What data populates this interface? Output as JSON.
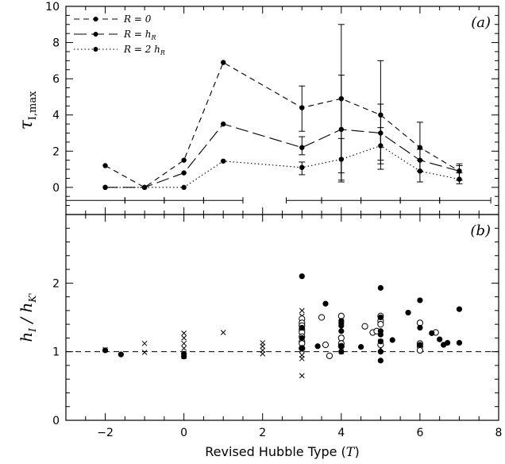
{
  "chart_data": [
    {
      "type": "line",
      "panel_label": "(a)",
      "ylabel": "τ_I,max",
      "xlim": [
        -3,
        8
      ],
      "ylim": [
        -1.5,
        10
      ],
      "x_ticks": [
        -2,
        0,
        2,
        4,
        6,
        8
      ],
      "y_ticks": [
        0,
        2,
        4,
        6,
        8,
        10
      ],
      "legend": {
        "placement": "top-left",
        "entries": [
          "R = 0",
          "R = h_R",
          "R = 2 h_R"
        ]
      },
      "series": [
        {
          "name": "R = 0",
          "style": "dashed",
          "points": [
            {
              "x": -2,
              "y": 1.2
            },
            {
              "x": -1,
              "y": 0.0
            },
            {
              "x": 0,
              "y": 1.5
            },
            {
              "x": 1,
              "y": 6.9
            },
            {
              "x": 3,
              "y": 4.4,
              "err": [
                3.1,
                5.6
              ]
            },
            {
              "x": 4,
              "y": 4.9,
              "err": [
                0.8,
                9.0
              ]
            },
            {
              "x": 5,
              "y": 4.0,
              "err": [
                1.0,
                7.0
              ]
            },
            {
              "x": 6,
              "y": 2.2,
              "err": [
                0.9,
                3.6
              ]
            },
            {
              "x": 7,
              "y": 0.9,
              "err": [
                0.4,
                1.3
              ]
            }
          ]
        },
        {
          "name": "R = h_R",
          "style": "long-dashed",
          "points": [
            {
              "x": -2,
              "y": 0.0
            },
            {
              "x": -1,
              "y": 0.0
            },
            {
              "x": 0,
              "y": 0.8
            },
            {
              "x": 1,
              "y": 3.5
            },
            {
              "x": 3,
              "y": 2.2,
              "err": [
                1.8,
                2.8
              ]
            },
            {
              "x": 4,
              "y": 3.2,
              "err": [
                0.4,
                6.2
              ]
            },
            {
              "x": 5,
              "y": 3.0,
              "err": [
                1.5,
                4.6
              ]
            },
            {
              "x": 6,
              "y": 1.5,
              "err": [
                0.9,
                2.1
              ]
            },
            {
              "x": 7,
              "y": 0.9,
              "err": [
                0.4,
                1.2
              ]
            }
          ]
        },
        {
          "name": "R = 2 h_R",
          "style": "dotted",
          "points": [
            {
              "x": -2,
              "y": 0.0
            },
            {
              "x": -1,
              "y": 0.0
            },
            {
              "x": 0,
              "y": 0.0
            },
            {
              "x": 1,
              "y": 1.45
            },
            {
              "x": 3,
              "y": 1.1,
              "err": [
                0.7,
                1.4
              ]
            },
            {
              "x": 4,
              "y": 1.55,
              "err": [
                0.3,
                2.7
              ]
            },
            {
              "x": 5,
              "y": 2.3,
              "err": [
                1.3,
                3.3
              ]
            },
            {
              "x": 6,
              "y": 0.9,
              "err": [
                0.3,
                1.5
              ]
            },
            {
              "x": 7,
              "y": 0.45,
              "err": [
                0.2,
                0.8
              ]
            }
          ]
        }
      ],
      "bin_ranges": [
        [
          -3,
          -1.5
        ],
        [
          -1.5,
          -0.5
        ],
        [
          -0.5,
          0.5
        ],
        [
          0.5,
          1.5
        ],
        [
          2.6,
          3.5
        ],
        [
          3.5,
          4.5
        ],
        [
          4.5,
          5.5
        ],
        [
          5.5,
          6.5
        ],
        [
          6.5,
          7.8
        ]
      ]
    },
    {
      "type": "scatter",
      "panel_label": "(b)",
      "xlabel": "Revised Hubble Type (T)",
      "ylabel": "h_I / h_K'",
      "xlim": [
        -3,
        8
      ],
      "ylim": [
        0,
        3
      ],
      "x_ticks": [
        -2,
        0,
        2,
        4,
        6,
        8
      ],
      "y_ticks": [
        0,
        1,
        2
      ],
      "reference_line_y": 1.0,
      "filled_circles": [
        [
          -2,
          1.02
        ],
        [
          -1.6,
          0.96
        ],
        [
          0,
          0.97
        ],
        [
          0,
          0.93
        ],
        [
          3,
          2.1
        ],
        [
          3,
          1.35
        ],
        [
          3,
          1.2
        ],
        [
          3,
          1.05
        ],
        [
          3.4,
          1.08
        ],
        [
          3.6,
          1.7
        ],
        [
          4,
          1.45
        ],
        [
          4,
          1.42
        ],
        [
          4,
          1.38
        ],
        [
          4,
          1.3
        ],
        [
          4,
          1.08
        ],
        [
          4,
          1.0
        ],
        [
          4.5,
          1.07
        ],
        [
          5,
          1.93
        ],
        [
          5,
          1.5
        ],
        [
          5,
          1.3
        ],
        [
          5,
          1.25
        ],
        [
          5,
          1.15
        ],
        [
          5,
          1.0
        ],
        [
          5,
          0.87
        ],
        [
          5.3,
          1.17
        ],
        [
          5.7,
          1.57
        ],
        [
          6,
          1.75
        ],
        [
          6,
          1.35
        ],
        [
          6,
          1.1
        ],
        [
          6.3,
          1.27
        ],
        [
          6.5,
          1.18
        ],
        [
          6.6,
          1.1
        ],
        [
          6.7,
          1.13
        ],
        [
          7,
          1.62
        ],
        [
          7,
          1.13
        ]
      ],
      "open_circles": [
        [
          3,
          1.48
        ],
        [
          3,
          1.42
        ],
        [
          3,
          1.38
        ],
        [
          3,
          1.32
        ],
        [
          3,
          1.28
        ],
        [
          3,
          1.22
        ],
        [
          3,
          1.15
        ],
        [
          3,
          1.12
        ],
        [
          3,
          1.05
        ],
        [
          3.5,
          1.5
        ],
        [
          3.6,
          1.1
        ],
        [
          3.7,
          0.94
        ],
        [
          4,
          1.52
        ],
        [
          4,
          1.2
        ],
        [
          4,
          1.12
        ],
        [
          4,
          1.08
        ],
        [
          4.6,
          1.37
        ],
        [
          4.8,
          1.28
        ],
        [
          4.9,
          1.3
        ],
        [
          5,
          1.52
        ],
        [
          5,
          1.45
        ],
        [
          5,
          1.4
        ],
        [
          5,
          1.1
        ],
        [
          6,
          1.42
        ],
        [
          6,
          1.12
        ],
        [
          6,
          1.08
        ],
        [
          6,
          1.02
        ],
        [
          6.4,
          1.28
        ]
      ],
      "crosses": [
        [
          -2,
          1.03
        ],
        [
          -1,
          1.12
        ],
        [
          -1,
          0.99
        ],
        [
          0,
          1.27
        ],
        [
          0,
          1.2
        ],
        [
          0,
          1.12
        ],
        [
          0,
          1.05
        ],
        [
          0,
          0.97
        ],
        [
          0,
          0.93
        ],
        [
          1,
          1.28
        ],
        [
          2,
          1.13
        ],
        [
          2,
          1.08
        ],
        [
          2,
          1.02
        ],
        [
          2,
          0.97
        ],
        [
          3,
          1.6
        ],
        [
          3,
          1.52
        ],
        [
          3,
          1.45
        ],
        [
          3,
          1.38
        ],
        [
          3,
          1.3
        ],
        [
          3,
          1.25
        ],
        [
          3,
          1.18
        ],
        [
          3,
          1.1
        ],
        [
          3,
          1.02
        ],
        [
          3,
          0.95
        ],
        [
          3,
          0.9
        ],
        [
          3,
          0.65
        ],
        [
          4,
          1.2
        ],
        [
          4,
          1.0
        ],
        [
          5,
          1.15
        ],
        [
          5,
          1.05
        ],
        [
          6,
          1.05
        ]
      ]
    }
  ]
}
